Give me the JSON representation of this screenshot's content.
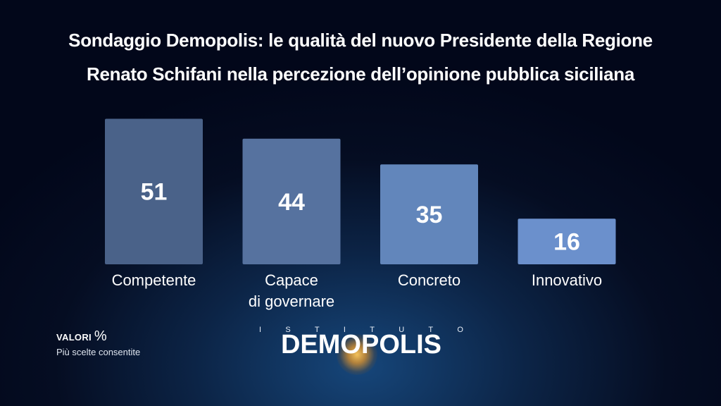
{
  "title": {
    "line1": "Sondaggio Demopolis: le qualità del nuovo Presidente della Regione",
    "line2": "Renato Schifani nella percezione dell’opinione pubblica siciliana"
  },
  "footer": {
    "values_label": "VALORI",
    "values_unit": "%",
    "note": "Più scelte consentite"
  },
  "logo": {
    "top_text": "ISTITUTO",
    "main_text": "DEMOPOLIS"
  },
  "colors": {
    "bars": [
      "#4a6289",
      "#56729f",
      "#6286bb",
      "#6b90cc"
    ]
  },
  "chart_data": {
    "type": "bar",
    "categories": [
      [
        "Competente"
      ],
      [
        "Capace",
        "di governare"
      ],
      [
        "Concreto"
      ],
      [
        "Innovativo"
      ]
    ],
    "values": [
      51,
      44,
      35,
      16
    ],
    "unit": "%"
  }
}
